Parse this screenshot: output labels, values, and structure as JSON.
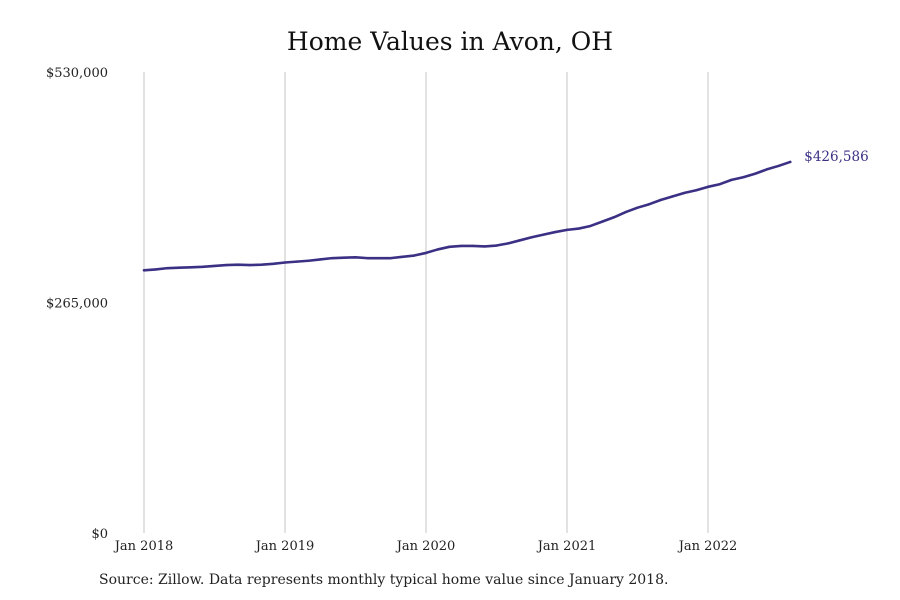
{
  "chart_data": {
    "type": "line",
    "title": "Home Values in Avon, OH",
    "source": "Source: Zillow. Data represents monthly typical home value since January 2018.",
    "ylim": [
      0,
      530000
    ],
    "y_ticks": [
      {
        "value": 0,
        "label": "$0"
      },
      {
        "value": 265000,
        "label": "$265,000"
      },
      {
        "value": 530000,
        "label": "$530,000"
      }
    ],
    "x_ticks": [
      {
        "value": "2018-01",
        "label": "Jan 2018"
      },
      {
        "value": "2019-01",
        "label": "Jan 2019"
      },
      {
        "value": "2020-01",
        "label": "Jan 2020"
      },
      {
        "value": "2021-01",
        "label": "Jan 2021"
      },
      {
        "value": "2022-01",
        "label": "Jan 2022"
      }
    ],
    "grid": {
      "vertical": true,
      "horizontal": false
    },
    "line_color": "#3a3185",
    "end_label": "$426,586",
    "series": [
      {
        "x": [
          "2018-01",
          "2018-02",
          "2018-03",
          "2018-04",
          "2018-05",
          "2018-06",
          "2018-07",
          "2018-08",
          "2018-09",
          "2018-10",
          "2018-11",
          "2018-12",
          "2019-01",
          "2019-02",
          "2019-03",
          "2019-04",
          "2019-05",
          "2019-06",
          "2019-07",
          "2019-08",
          "2019-09",
          "2019-10",
          "2019-11",
          "2019-12",
          "2020-01",
          "2020-02",
          "2020-03",
          "2020-04",
          "2020-05",
          "2020-06",
          "2020-07",
          "2020-08",
          "2020-09",
          "2020-10",
          "2020-11",
          "2020-12",
          "2021-01",
          "2021-02",
          "2021-03",
          "2021-04",
          "2021-05",
          "2021-06",
          "2021-07",
          "2021-08",
          "2021-09",
          "2021-10",
          "2021-11",
          "2021-12",
          "2022-01",
          "2022-02",
          "2022-03",
          "2022-04",
          "2022-05",
          "2022-06",
          "2022-07",
          "2022-08"
        ],
        "values": [
          302000,
          303000,
          304500,
          305000,
          305500,
          306000,
          307000,
          308000,
          308500,
          308000,
          308500,
          309500,
          311000,
          312000,
          313000,
          314500,
          316000,
          316500,
          317000,
          316000,
          316000,
          316000,
          317500,
          319000,
          322000,
          326000,
          329000,
          330000,
          330000,
          329500,
          330500,
          333000,
          336500,
          340000,
          343000,
          346000,
          348500,
          350000,
          353000,
          358000,
          363000,
          369000,
          374000,
          378000,
          383000,
          387000,
          391000,
          394000,
          398000,
          401000,
          406000,
          409000,
          413000,
          418000,
          422000,
          426586
        ]
      }
    ]
  }
}
